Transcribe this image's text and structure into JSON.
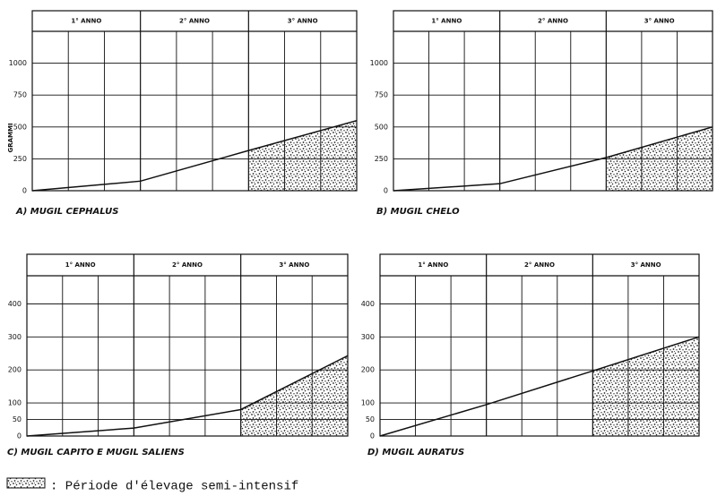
{
  "chart_data": [
    {
      "type": "line",
      "title": "A) MUGIL CEPHALUS",
      "y_label": "GRAMMI",
      "years": [
        "1° ANNO",
        "2° ANNO",
        "3° ANNO"
      ],
      "x": [
        0,
        12,
        24,
        36
      ],
      "values": [
        0,
        75,
        315,
        550
      ],
      "xlim": [
        0,
        36
      ],
      "ylim": [
        0,
        1250
      ],
      "yticks": [
        0,
        250,
        500,
        750,
        1000
      ],
      "shaded_x": [
        24,
        36
      ],
      "color": "#111"
    },
    {
      "type": "line",
      "title": "B) MUGIL CHELO",
      "years": [
        "1° ANNO",
        "2° ANNO",
        "3° ANNO"
      ],
      "x": [
        0,
        12,
        24,
        36
      ],
      "values": [
        0,
        55,
        260,
        500
      ],
      "xlim": [
        0,
        36
      ],
      "ylim": [
        0,
        1250
      ],
      "yticks": [
        0,
        250,
        500,
        750,
        1000
      ],
      "shaded_x": [
        24,
        36
      ],
      "color": "#111"
    },
    {
      "type": "line",
      "title": "C) MUGIL CAPITO E MUGIL SALIENS",
      "years": [
        "1° ANNO",
        "2° ANNO",
        "3° ANNO"
      ],
      "x": [
        0,
        12,
        24,
        36
      ],
      "values": [
        0,
        24,
        80,
        243
      ],
      "xlim": [
        0,
        36
      ],
      "ylim": [
        0,
        485
      ],
      "yticks": [
        0,
        50,
        100,
        200,
        300,
        400
      ],
      "shaded_x": [
        24,
        36
      ],
      "color": "#111"
    },
    {
      "type": "line",
      "title": "D) MUGIL AURATUS",
      "years": [
        "1° ANNO",
        "2° ANNO",
        "3° ANNO"
      ],
      "x": [
        0,
        12,
        24,
        36
      ],
      "values": [
        0,
        95,
        197,
        300
      ],
      "xlim": [
        0,
        36
      ],
      "ylim": [
        0,
        485
      ],
      "yticks": [
        0,
        50,
        100,
        200,
        300,
        400
      ],
      "shaded_x": [
        24,
        36
      ],
      "color": "#111"
    }
  ],
  "legend_text": ": Période d'élevage semi-intensif"
}
